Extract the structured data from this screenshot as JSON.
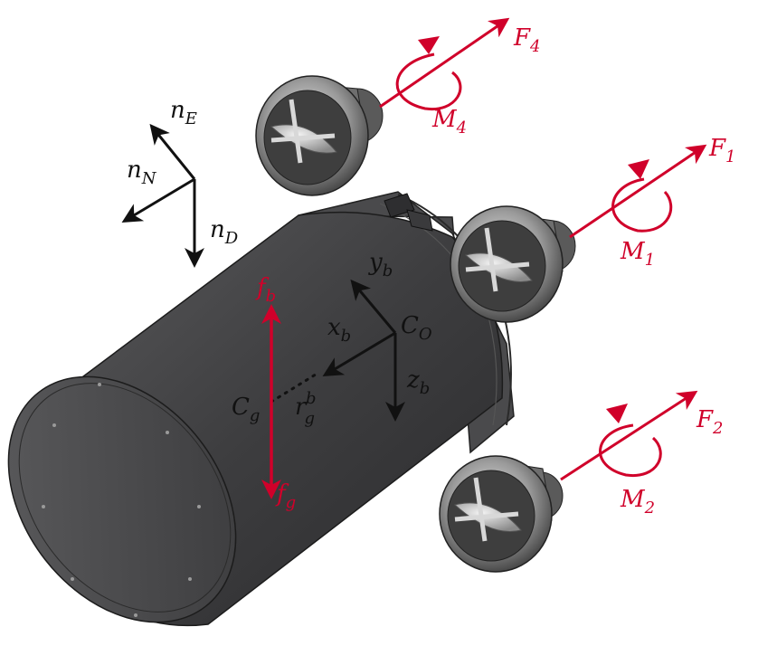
{
  "colors": {
    "force_red": "#d0002a",
    "axis_black": "#111111",
    "body_dark": "#3b3b3d",
    "body_light": "#6a6a6c"
  },
  "ned_frame": {
    "north": {
      "base": "n",
      "sub": "N"
    },
    "east": {
      "base": "n",
      "sub": "E"
    },
    "down": {
      "base": "n",
      "sub": "D"
    }
  },
  "body_frame": {
    "x": {
      "base": "x",
      "sub": "b"
    },
    "y": {
      "base": "y",
      "sub": "b"
    },
    "z": {
      "base": "z",
      "sub": "b"
    },
    "origin": {
      "base": "C",
      "sub": "O"
    },
    "gravity_center": {
      "base": "C",
      "sub": "g"
    },
    "offset": {
      "base": "r",
      "sub": "g",
      "sup": "b"
    }
  },
  "forces": {
    "buoyancy": {
      "base": "f",
      "sub": "b"
    },
    "gravity": {
      "base": "f",
      "sub": "g"
    }
  },
  "thrusters": [
    {
      "force": {
        "base": "F",
        "sub": "1"
      },
      "moment": {
        "base": "M",
        "sub": "1"
      }
    },
    {
      "force": {
        "base": "F",
        "sub": "2"
      },
      "moment": {
        "base": "M",
        "sub": "2"
      }
    },
    {
      "force": {
        "base": "F",
        "sub": "4"
      },
      "moment": {
        "base": "M",
        "sub": "4"
      }
    }
  ]
}
